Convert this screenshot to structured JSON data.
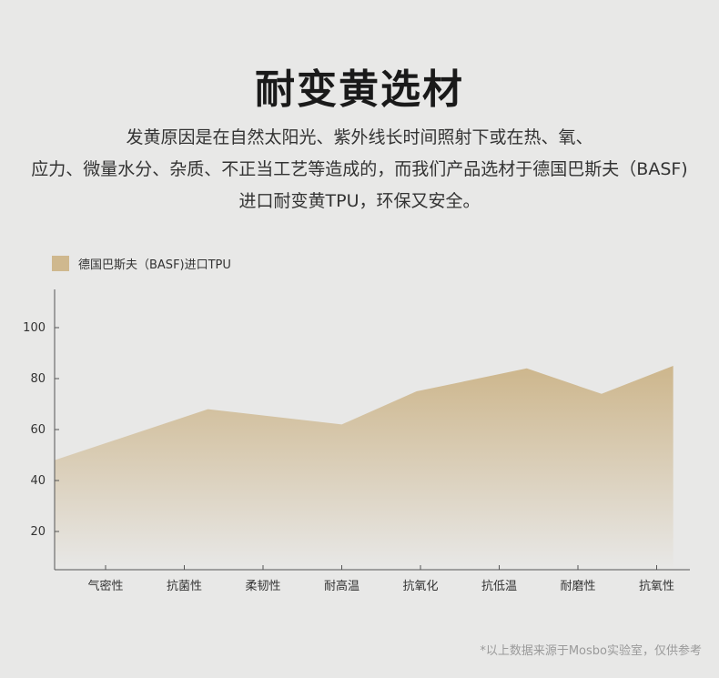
{
  "header": {
    "title": "耐变黄选材"
  },
  "description": {
    "lines": [
      "发黄原因是在自然太阳光、紫外线长时间照射下或在热、氧、",
      "应力、微量水分、杂质、不正当工艺等造成的，而我们产品选材于德国巴斯夫（BASF)",
      "进口耐变黄TPU，环保又安全。"
    ]
  },
  "legend": {
    "label": "德国巴斯夫（BASF)进口TPU",
    "swatch_color": "#cfb88e"
  },
  "chart_data": {
    "type": "area",
    "categories": [
      "气密性",
      "抗菌性",
      "柔韧性",
      "耐高温",
      "抗氧化",
      "抗低温",
      "耐磨性",
      "抗氧性"
    ],
    "series": [
      {
        "name": "德国巴斯夫（BASF)进口TPU",
        "points": [
          {
            "x": 0.0,
            "y": 48
          },
          {
            "x": 1.95,
            "y": 68
          },
          {
            "x": 3.65,
            "y": 62
          },
          {
            "x": 4.6,
            "y": 75
          },
          {
            "x": 6.0,
            "y": 84
          },
          {
            "x": 6.95,
            "y": 74
          },
          {
            "x": 7.86,
            "y": 85
          }
        ]
      }
    ],
    "yticks": [
      20,
      40,
      60,
      80,
      100
    ],
    "ylim": [
      5,
      115
    ],
    "grid": false,
    "legend_position": "top-left",
    "colors": {
      "area_top": "#cdb68c",
      "area_bottom": "#e8e8e7",
      "axis": "#555555"
    }
  },
  "footnote": "*以上数据来源于Mosbo实验室，仅供参考"
}
